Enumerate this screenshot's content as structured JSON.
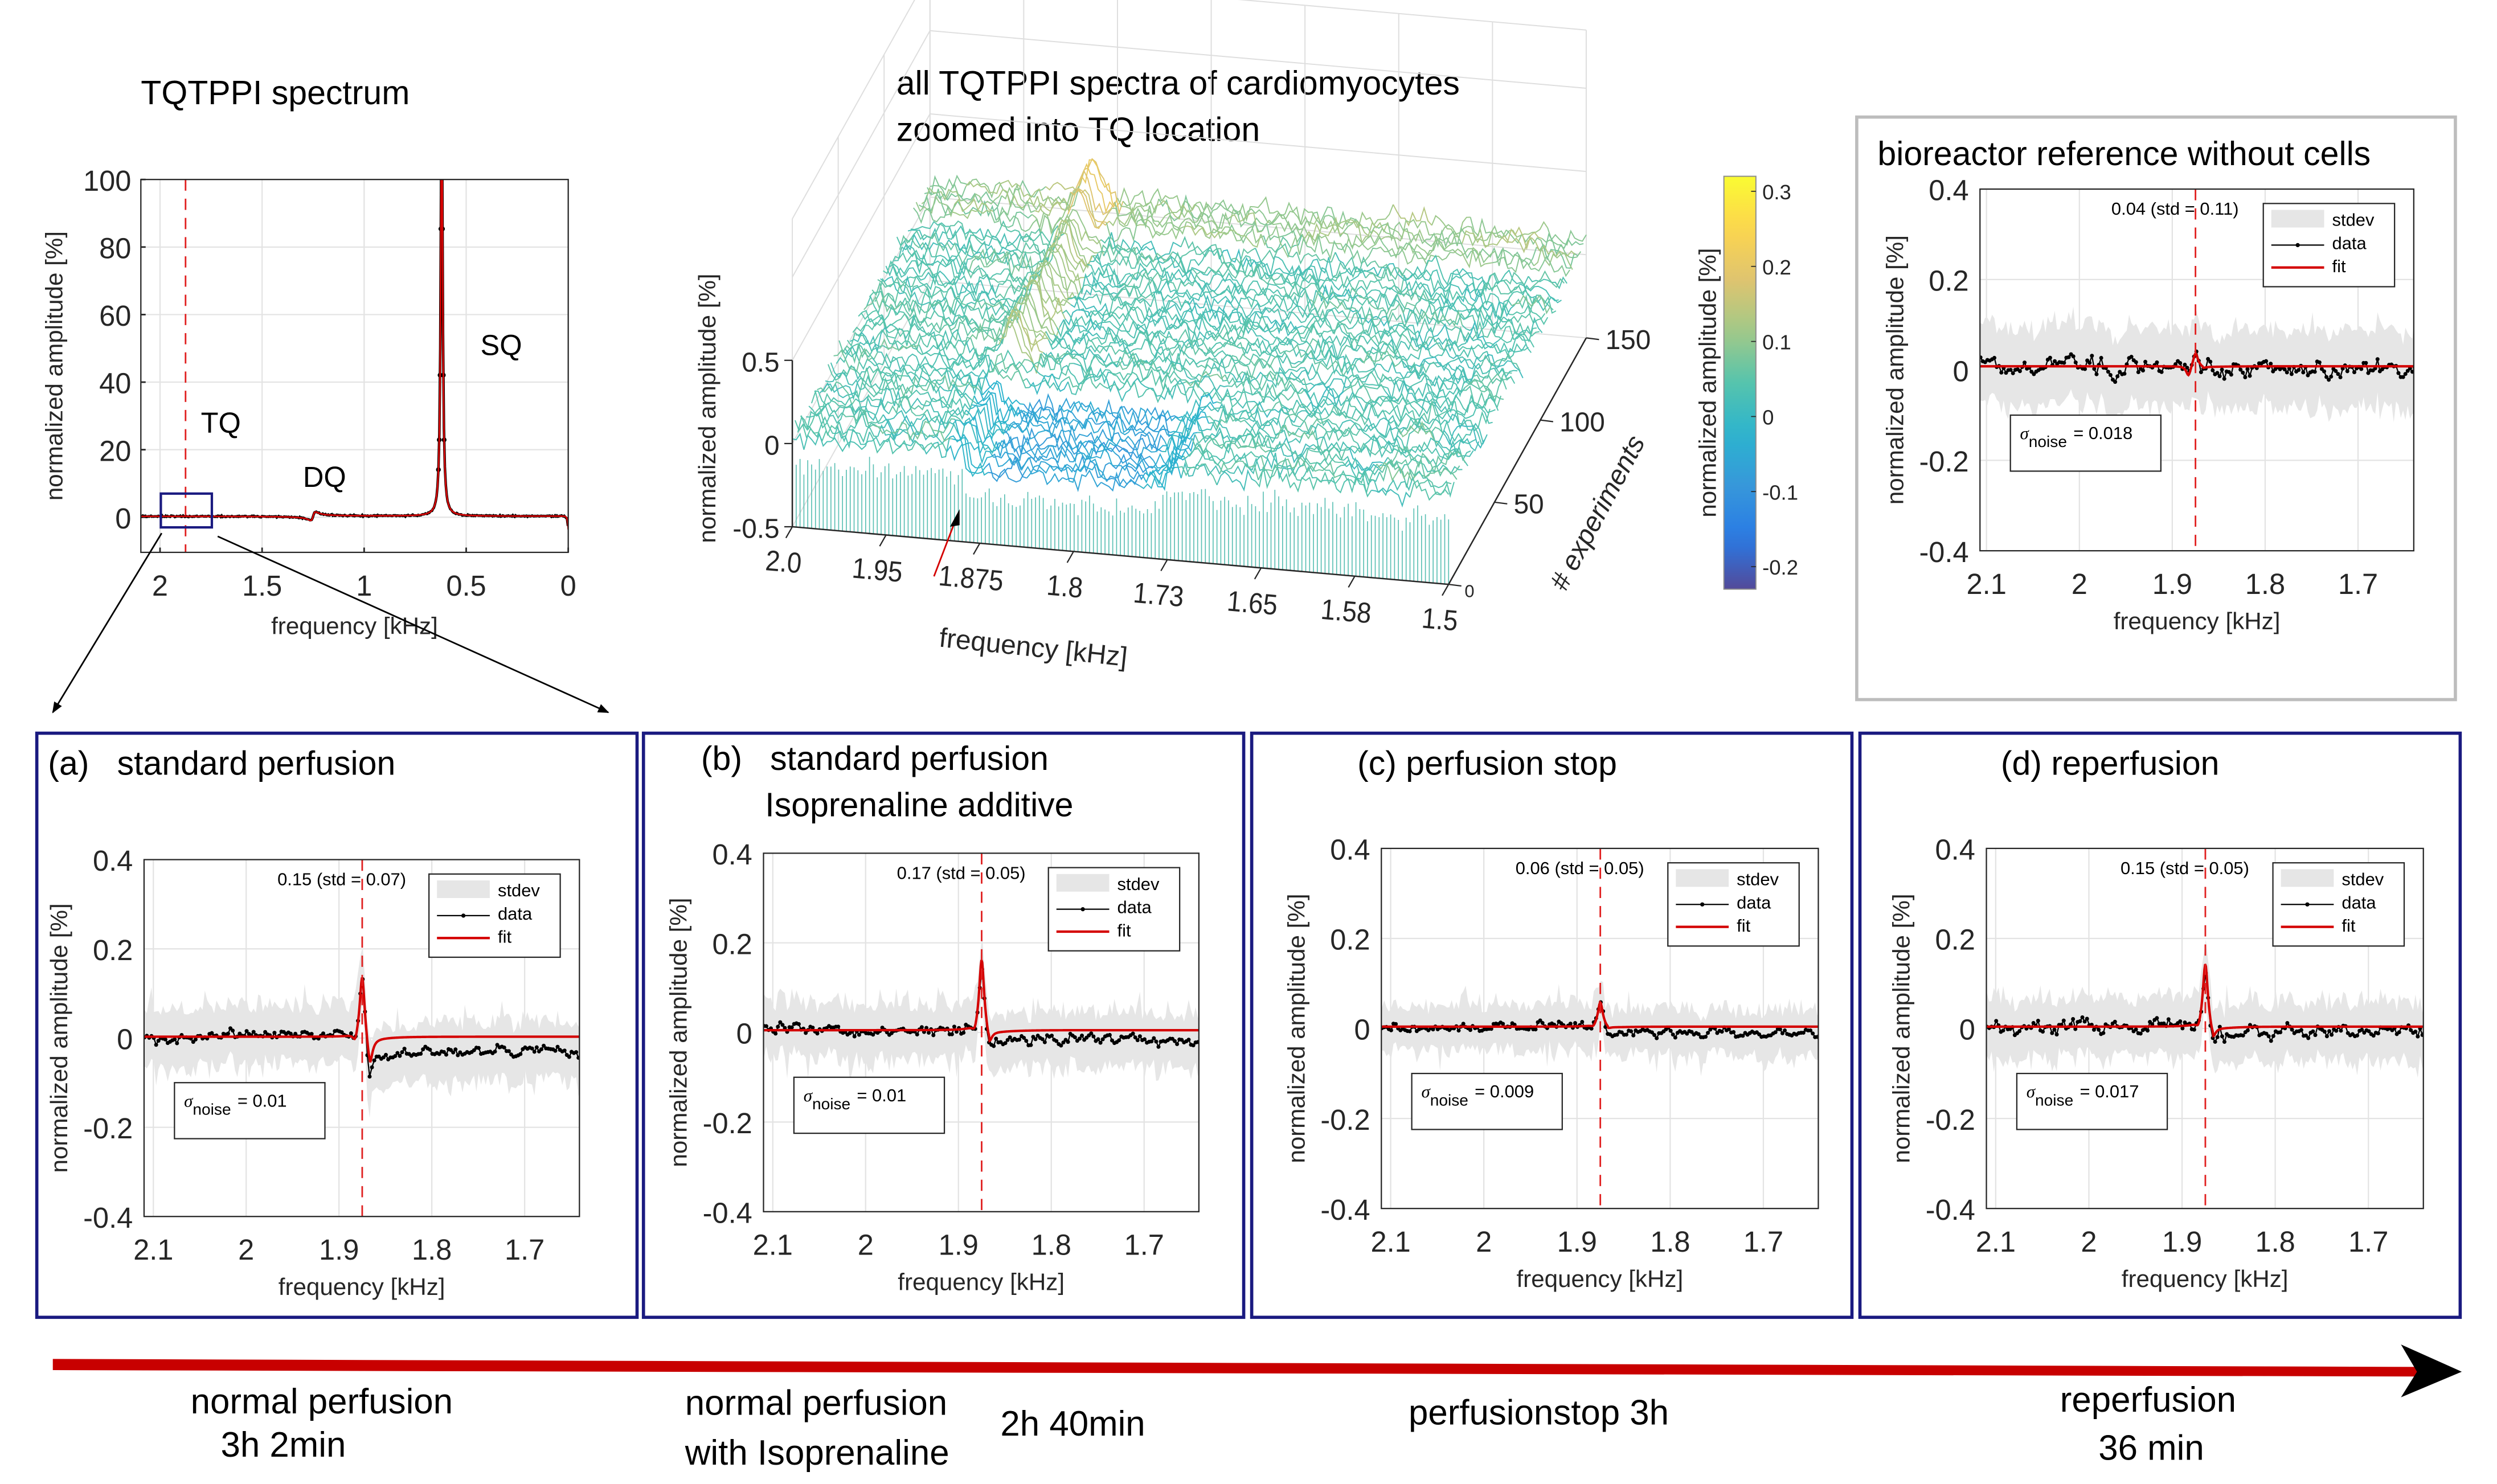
{
  "chart_data": [
    {
      "id": "overview-spectrum",
      "type": "line",
      "title": "TQTPPI spectrum",
      "xlabel": "frequency [kHz]",
      "ylabel": "normalized amplitude [%]",
      "xlim": [
        2.094,
        0
      ],
      "ylim": [
        -10.4,
        100
      ],
      "xticks": [
        2,
        1.5,
        1,
        0.5,
        0
      ],
      "xtick_labels": [
        "2",
        "1.5",
        "1",
        "0.5",
        "0"
      ],
      "yticks": [
        0,
        20,
        40,
        60,
        80,
        100
      ],
      "ytick_labels": [
        "0",
        "20",
        "40",
        "60",
        "80",
        "100"
      ],
      "grid": true,
      "tq_frequency": 1.875,
      "peaks": [
        {
          "label": "SQ",
          "frequency": 0.62,
          "amplitude": 100
        },
        {
          "label": "DQ",
          "frequency": 1.25,
          "amplitude": -2
        },
        {
          "label": "TQ",
          "frequency": 1.875,
          "amplitude": 0.15
        }
      ],
      "annotations": [
        {
          "text": "TQ",
          "x": 1.8,
          "y": 25
        },
        {
          "text": "DQ",
          "x": 1.3,
          "y": 9
        },
        {
          "text": "SQ",
          "x": 0.43,
          "y": 48
        }
      ],
      "zoom_region": {
        "x": [
          2.0,
          1.75
        ],
        "y": [
          -3,
          7
        ]
      },
      "colors": {
        "data": "#000000",
        "fit": "#d40000",
        "marker": "#e02020",
        "zoom_box": "#1a1a80"
      }
    },
    {
      "id": "surface-3d",
      "type": "surface",
      "title_lines": [
        "all TQTPPI spectra of cardiomyocytes",
        "zoomed into TQ location"
      ],
      "xlabel": "frequency [kHz]",
      "ylabel": "# experiments",
      "zlabel": "normalized amplitude [%]",
      "xlim": [
        2.0,
        1.5
      ],
      "ylim": [
        0,
        150
      ],
      "zlim": [
        -0.5,
        0.5
      ],
      "xtick_labels": [
        "2.0",
        "1.95",
        "1.875",
        "1.8",
        "1.73",
        "1.65",
        "1.58",
        "1.5"
      ],
      "ytick_labels": [
        "0",
        "50",
        "100",
        "150"
      ],
      "ztick_labels": [
        "-0.5",
        "0",
        "0.5"
      ],
      "marker_frequency": 1.875,
      "colormap": "parula",
      "colorbar": {
        "label": "normalized amplitude [%]",
        "range": [
          -0.23,
          0.32
        ],
        "ticks": [
          -0.2,
          -0.1,
          0,
          0.1,
          0.2,
          0.3
        ],
        "tick_labels": [
          "-0.2",
          "-0.1",
          "0",
          "0.1",
          "0.2",
          "0.3"
        ]
      }
    },
    {
      "id": "panel-reference",
      "type": "line",
      "title_lines": [
        "bioreactor reference without cells"
      ],
      "xlabel": "frequency [kHz]",
      "ylabel": "normalized amplitude [%]",
      "xlim": [
        2.107,
        1.64
      ],
      "ylim": [
        -0.4,
        0.4
      ],
      "xticks": [
        2.1,
        2,
        1.9,
        1.8,
        1.7
      ],
      "xtick_labels": [
        "2.1",
        "2",
        "1.9",
        "1.8",
        "1.7"
      ],
      "yticks": [
        -0.4,
        -0.2,
        0,
        0.2,
        0.4
      ],
      "ytick_labels": [
        "-0.4",
        "-0.2",
        "0",
        "0.2",
        "0.4"
      ],
      "grid": true,
      "tq_frequency": 1.875,
      "peak_amplitude": 0.04,
      "peak_std": 0.11,
      "annotation": "0.04 (std = 0.11)",
      "sigma_symbol": "σ",
      "sigma_subscript": "noise",
      "sigma_value": "= 0.018",
      "legend": [
        "stdev",
        "data",
        "fit"
      ],
      "legend_placement": "top-right"
    },
    {
      "id": "panel-a",
      "type": "line",
      "title_lines": [
        "(a)   standard perfusion"
      ],
      "xlabel": "frequency [kHz]",
      "ylabel": "normalized amplitude [%]",
      "xlim": [
        2.11,
        1.641
      ],
      "ylim": [
        -0.4,
        0.4
      ],
      "xticks": [
        2.1,
        2,
        1.9,
        1.8,
        1.7
      ],
      "xtick_labels": [
        "2.1",
        "2",
        "1.9",
        "1.8",
        "1.7"
      ],
      "yticks": [
        -0.4,
        -0.2,
        0,
        0.2,
        0.4
      ],
      "ytick_labels": [
        "-0.4",
        "-0.2",
        "0",
        "0.2",
        "0.4"
      ],
      "grid": true,
      "tq_frequency": 1.875,
      "peak_amplitude": 0.15,
      "peak_std": 0.07,
      "annotation": "0.15 (std = 0.07)",
      "sigma_symbol": "σ",
      "sigma_subscript": "noise",
      "sigma_value": "= 0.01",
      "legend": [
        "stdev",
        "data",
        "fit"
      ],
      "legend_placement": "top-right"
    },
    {
      "id": "panel-b",
      "type": "line",
      "title_lines": [
        "(b)   standard perfusion",
        "Isoprenaline additive"
      ],
      "xlabel": "frequency [kHz]",
      "ylabel": "normalized amplitude [%]",
      "xlim": [
        2.11,
        1.641
      ],
      "ylim": [
        -0.4,
        0.4
      ],
      "xticks": [
        2.1,
        2,
        1.9,
        1.8,
        1.7
      ],
      "xtick_labels": [
        "2.1",
        "2",
        "1.9",
        "1.8",
        "1.7"
      ],
      "yticks": [
        -0.4,
        -0.2,
        0,
        0.2,
        0.4
      ],
      "ytick_labels": [
        "-0.4",
        "-0.2",
        "0",
        "0.2",
        "0.4"
      ],
      "grid": true,
      "tq_frequency": 1.875,
      "peak_amplitude": 0.17,
      "peak_std": 0.05,
      "annotation": "0.17 (std = 0.05)",
      "sigma_symbol": "σ",
      "sigma_subscript": "noise",
      "sigma_value": "= 0.01",
      "legend": [
        "stdev",
        "data",
        "fit"
      ],
      "legend_placement": "top-right"
    },
    {
      "id": "panel-c",
      "type": "line",
      "title_lines": [
        "(c) perfusion stop"
      ],
      "xlabel": "frequency [kHz]",
      "ylabel": "normalized amplitude [%]",
      "xlim": [
        2.11,
        1.641
      ],
      "ylim": [
        -0.4,
        0.4
      ],
      "xticks": [
        2.1,
        2,
        1.9,
        1.8,
        1.7
      ],
      "xtick_labels": [
        "2.1",
        "2",
        "1.9",
        "1.8",
        "1.7"
      ],
      "yticks": [
        -0.4,
        -0.2,
        0,
        0.2,
        0.4
      ],
      "ytick_labels": [
        "-0.4",
        "-0.2",
        "0",
        "0.2",
        "0.4"
      ],
      "grid": true,
      "tq_frequency": 1.875,
      "peak_amplitude": 0.06,
      "peak_std": 0.05,
      "annotation": "0.06 (std = 0.05)",
      "sigma_symbol": "σ",
      "sigma_subscript": "noise",
      "sigma_value": "= 0.009",
      "legend": [
        "stdev",
        "data",
        "fit"
      ],
      "legend_placement": "top-right"
    },
    {
      "id": "panel-d",
      "type": "line",
      "title_lines": [
        "(d) reperfusion"
      ],
      "xlabel": "frequency [kHz]",
      "ylabel": "normalized amplitude [%]",
      "xlim": [
        2.11,
        1.641
      ],
      "ylim": [
        -0.4,
        0.4
      ],
      "xticks": [
        2.1,
        2,
        1.9,
        1.8,
        1.7
      ],
      "xtick_labels": [
        "2.1",
        "2",
        "1.9",
        "1.8",
        "1.7"
      ],
      "yticks": [
        -0.4,
        -0.2,
        0,
        0.2,
        0.4
      ],
      "ytick_labels": [
        "-0.4",
        "-0.2",
        "0",
        "0.2",
        "0.4"
      ],
      "grid": true,
      "tq_frequency": 1.875,
      "peak_amplitude": 0.15,
      "peak_std": 0.05,
      "annotation": "0.15 (std = 0.05)",
      "sigma_symbol": "σ",
      "sigma_subscript": "noise",
      "sigma_value": "= 0.017",
      "legend": [
        "stdev",
        "data",
        "fit"
      ],
      "legend_placement": "top-right"
    }
  ],
  "colors": {
    "data": "#000000",
    "fit": "#d40000",
    "stdev_band": "#e6e6e6",
    "tq_marker": "#e02020",
    "panel_border": "#1a1a80",
    "reference_border": "#bdbdbd",
    "timeline": "#c80000"
  },
  "timeline": {
    "phases": [
      {
        "lines": [
          "normal perfusion",
          "3h 2min"
        ]
      },
      {
        "lines": [
          "normal perfusion",
          "with Isoprenaline"
        ],
        "duration": "2h 40min"
      },
      {
        "lines": [
          "perfusionstop 3h"
        ]
      },
      {
        "lines": [
          "reperfusion",
          "36 min"
        ]
      }
    ]
  }
}
